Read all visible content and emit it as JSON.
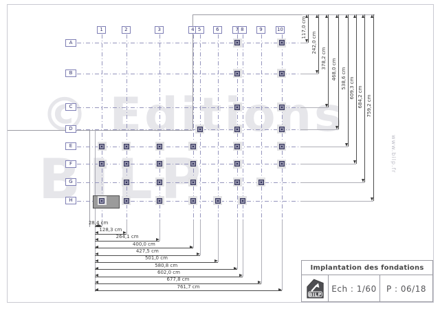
{
  "watermark": {
    "line1": "© Editions",
    "line2": "BILP",
    "site": "www.bilp.fr"
  },
  "title_block": {
    "title": "Implantation des fondations",
    "scale": "Ech : 1/60",
    "page": "P : 06/18",
    "logo": "BILP"
  },
  "grid": {
    "columns": [
      {
        "label": "1",
        "cm": 28.4
      },
      {
        "label": "2",
        "cm": 128.3
      },
      {
        "label": "3",
        "cm": 264.1
      },
      {
        "label": "4",
        "cm": 400.0
      },
      {
        "label": "5",
        "cm": 427.5
      },
      {
        "label": "6",
        "cm": 501.0
      },
      {
        "label": "7",
        "cm": 580.8
      },
      {
        "label": "8",
        "cm": 602.0
      },
      {
        "label": "9",
        "cm": 677.8
      },
      {
        "label": "10",
        "cm": 761.7
      }
    ],
    "rows": [
      {
        "label": "A",
        "cm": 117.0
      },
      {
        "label": "B",
        "cm": 242.0
      },
      {
        "label": "C",
        "cm": 378.2
      },
      {
        "label": "D",
        "cm": 468.0
      },
      {
        "label": "E",
        "cm": 538.6
      },
      {
        "label": "F",
        "cm": 609.3
      },
      {
        "label": "G",
        "cm": 684.2
      },
      {
        "label": "H",
        "cm": 759.2
      }
    ]
  },
  "dimensions_bottom": [
    "28,4 cm",
    "128,3 cm",
    "264,1 cm",
    "400,0 cm",
    "427,5 cm",
    "501,0 cm",
    "580,8 cm",
    "602,0 cm",
    "677,8 cm",
    "761,7 cm"
  ],
  "dimensions_right": [
    "117,0 cm",
    "242,0 cm",
    "378,2 cm",
    "468,0 cm",
    "538,6 cm",
    "609,3 cm",
    "684,2 cm",
    "759,2 cm"
  ],
  "posts": [
    {
      "row": "A",
      "cols": [
        7,
        10
      ]
    },
    {
      "row": "B",
      "cols": [
        7,
        10
      ]
    },
    {
      "row": "C",
      "cols": [
        7,
        10
      ]
    },
    {
      "row": "D",
      "cols": [
        5,
        7,
        10
      ]
    },
    {
      "row": "E",
      "cols": [
        1,
        2,
        3,
        4,
        7,
        10
      ]
    },
    {
      "row": "F",
      "cols": [
        1,
        2,
        3,
        4,
        7,
        10
      ]
    },
    {
      "row": "G",
      "cols": [
        2,
        3,
        4,
        7,
        9
      ]
    },
    {
      "row": "H",
      "cols": [
        1,
        2,
        3,
        4,
        6,
        8
      ]
    }
  ],
  "slab": {
    "description": "foundation-slab-row-H-col-1"
  }
}
